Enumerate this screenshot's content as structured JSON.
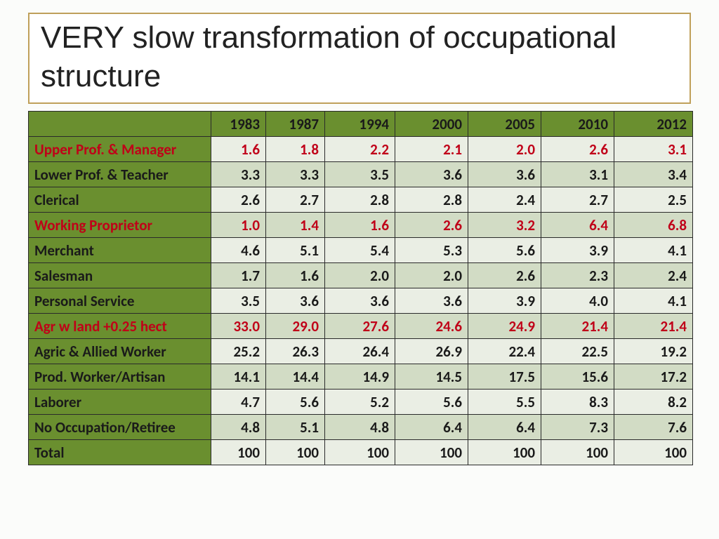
{
  "title": "VERY slow transformation of occupational structure",
  "table": {
    "years": [
      "1983",
      "1987",
      "1994",
      "2000",
      "2005",
      "2010",
      "2012"
    ],
    "rows": [
      {
        "label": "Upper Prof. & Manager",
        "highlight": true,
        "values": [
          "1.6",
          "1.8",
          "2.2",
          "2.1",
          "2.0",
          "2.6",
          "3.1"
        ]
      },
      {
        "label": "Lower Prof. & Teacher",
        "highlight": false,
        "values": [
          "3.3",
          "3.3",
          "3.5",
          "3.6",
          "3.6",
          "3.1",
          "3.4"
        ]
      },
      {
        "label": "Clerical",
        "highlight": false,
        "values": [
          "2.6",
          "2.7",
          "2.8",
          "2.8",
          "2.4",
          "2.7",
          "2.5"
        ]
      },
      {
        "label": "Working Proprietor",
        "highlight": true,
        "values": [
          "1.0",
          "1.4",
          "1.6",
          "2.6",
          "3.2",
          "6.4",
          "6.8"
        ]
      },
      {
        "label": "Merchant",
        "highlight": false,
        "values": [
          "4.6",
          "5.1",
          "5.4",
          "5.3",
          "5.6",
          "3.9",
          "4.1"
        ]
      },
      {
        "label": "Salesman",
        "highlight": false,
        "values": [
          "1.7",
          "1.6",
          "2.0",
          "2.0",
          "2.6",
          "2.3",
          "2.4"
        ]
      },
      {
        "label": "Personal Service",
        "highlight": false,
        "values": [
          "3.5",
          "3.6",
          "3.6",
          "3.6",
          "3.9",
          "4.0",
          "4.1"
        ]
      },
      {
        "label": "Agr w land +0.25 hect",
        "highlight": true,
        "values": [
          "33.0",
          "29.0",
          "27.6",
          "24.6",
          "24.9",
          "21.4",
          "21.4"
        ]
      },
      {
        "label": "Agric & Allied Worker",
        "highlight": false,
        "values": [
          "25.2",
          "26.3",
          "26.4",
          "26.9",
          "22.4",
          "22.5",
          "19.2"
        ]
      },
      {
        "label": "Prod. Worker/Artisan",
        "highlight": false,
        "values": [
          "14.1",
          "14.4",
          "14.9",
          "14.5",
          "17.5",
          "15.6",
          "17.2"
        ]
      },
      {
        "label": "Laborer",
        "highlight": false,
        "values": [
          "4.7",
          "5.6",
          "5.2",
          "5.6",
          "5.5",
          "8.3",
          "8.2"
        ]
      },
      {
        "label": "No Occupation/Retiree",
        "highlight": false,
        "values": [
          "4.8",
          "5.1",
          "4.8",
          "6.4",
          "6.4",
          "7.3",
          "7.6"
        ]
      },
      {
        "label": "Total",
        "highlight": false,
        "values": [
          "100",
          "100",
          "100",
          "100",
          "100",
          "100",
          "100"
        ]
      }
    ]
  },
  "colors": {
    "header_bg": "#6a8f2f",
    "band_a": "#eaeee4",
    "band_b": "#d2dcc5",
    "highlight_text": "#c00018",
    "normal_text": "#1a1a1a",
    "title_border": "#bfa05a",
    "page_bg": "#fbfcfa"
  },
  "fontsize": {
    "title": 44,
    "cell": 21
  }
}
